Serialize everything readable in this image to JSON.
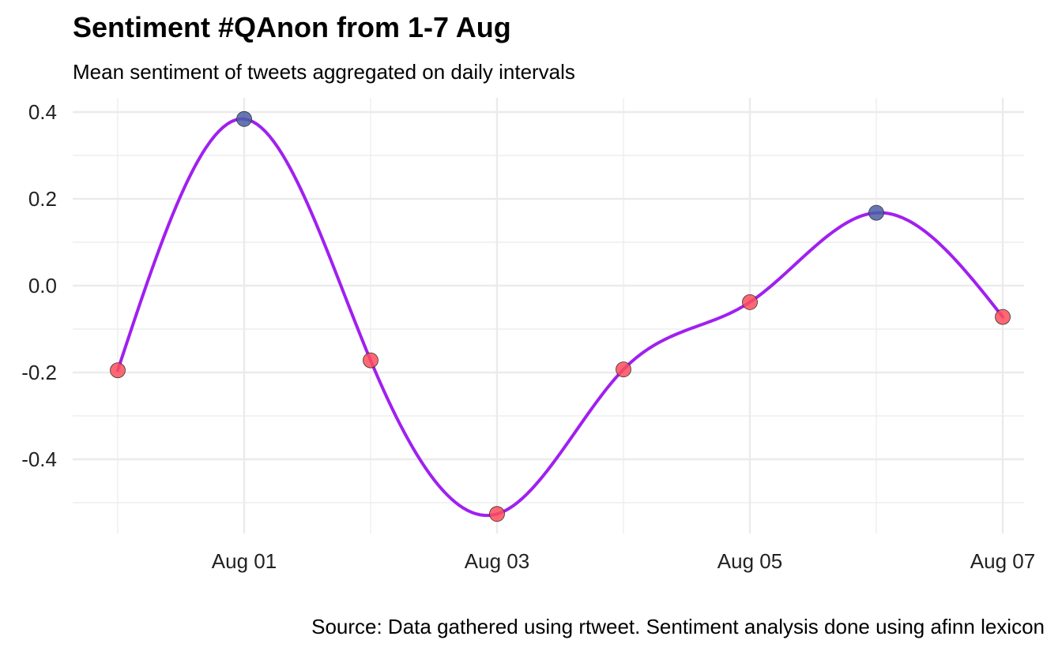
{
  "chart_data": {
    "type": "line",
    "title": "Sentiment #QAnon from 1-7 Aug",
    "subtitle": "Mean sentiment of tweets aggregated on daily intervals",
    "caption": "Source: Data gathered using rtweet. Sentiment analysis done using afinn lexicon",
    "xlabel": "",
    "ylabel": "",
    "x": [
      "2020-07-31",
      "2020-08-01",
      "2020-08-02",
      "2020-08-03",
      "2020-08-04",
      "2020-08-05",
      "2020-08-06",
      "2020-08-07"
    ],
    "x_ticks": [
      "Aug 01",
      "Aug 03",
      "Aug 05",
      "Aug 07"
    ],
    "y_ticks": [
      "0.4",
      "0.2",
      "0.0",
      "-0.2",
      "-0.4"
    ],
    "ylim": [
      -0.57,
      0.42
    ],
    "grid": true,
    "smoothed": true,
    "series": [
      {
        "values": [
          -0.195,
          0.384,
          -0.172,
          -0.526,
          -0.193,
          -0.038,
          0.168,
          -0.072
        ]
      }
    ],
    "colors": {
      "line": "#A020F0",
      "positive_point": "#4A5FA6",
      "negative_point": "#FF4D5B",
      "grid": "#EBEBEB"
    }
  }
}
